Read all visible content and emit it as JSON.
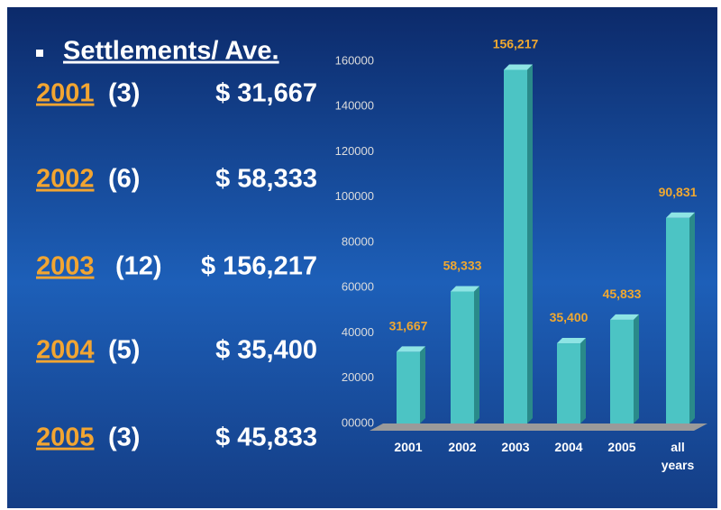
{
  "list": {
    "title": "Settlements/ Ave.",
    "rows": [
      {
        "year": "2001",
        "count": "(3)",
        "amount": "$ 31,667"
      },
      {
        "year": "2002",
        "count": "(6)",
        "amount": "$ 58,333"
      },
      {
        "year": "2003",
        "count": "(12)",
        "amount": "$ 156,217"
      },
      {
        "year": "2004",
        "count": "(5)",
        "amount": "$ 35,400"
      },
      {
        "year": "2005",
        "count": "(3)",
        "amount": "$ 45,833"
      }
    ]
  },
  "chart_data": {
    "type": "bar",
    "categories": [
      "2001",
      "2002",
      "2003",
      "2004",
      "2005",
      "all years"
    ],
    "values": [
      31667,
      58333,
      156217,
      35400,
      45833,
      90831
    ],
    "value_labels": [
      "31,667",
      "58,333",
      "156,217",
      "35,400",
      "45,833",
      "90,831"
    ],
    "color": "#4cc4c4",
    "ylim": [
      0,
      160000
    ],
    "yticks": [
      {
        "value": 0,
        "label": "00000"
      },
      20000,
      40000,
      60000,
      80000,
      100000,
      120000,
      140000,
      160000
    ]
  }
}
